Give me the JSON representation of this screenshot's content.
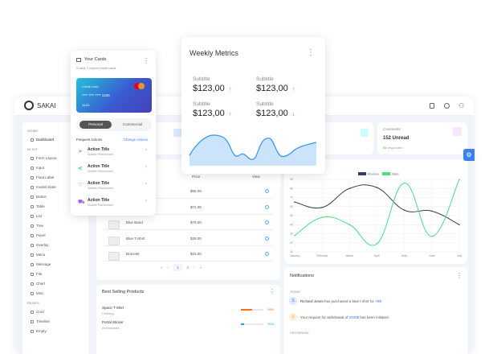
{
  "app": {
    "logo": "SAKAI",
    "top_icons": [
      "calendar-icon",
      "gear-icon",
      "user-icon"
    ]
  },
  "sidebar": {
    "sections": [
      {
        "title": "HOME",
        "items": [
          "Dashboard"
        ]
      },
      {
        "title": "UI KIT",
        "items": [
          "Form Layout",
          "Input",
          "Float Label",
          "Invalid State",
          "Button",
          "Table",
          "List",
          "Tree",
          "Panel",
          "Overlay",
          "Menu",
          "Message",
          "File",
          "Chart",
          "Misc"
        ]
      },
      {
        "title": "PAGES",
        "items": [
          "Crud",
          "Timeline",
          "Empty"
        ]
      }
    ]
  },
  "stats": {
    "comments": {
      "title": "Comments",
      "value": "152 Unread",
      "highlight": "85",
      "sub": "responded"
    }
  },
  "products": {
    "headers": {
      "price": "Price",
      "view": "View"
    },
    "rows": [
      {
        "name": "",
        "price": "$65.00"
      },
      {
        "name": "",
        "price": "$72.00"
      },
      {
        "name": "Blue Band",
        "price": "$79.00"
      },
      {
        "name": "Blue T-Shirt",
        "price": "$29.00"
      },
      {
        "name": "Bracelet",
        "price": "$15.00"
      }
    ],
    "pagination": {
      "pages": [
        "1",
        "2"
      ],
      "current": "1"
    }
  },
  "best_selling": {
    "title": "Best Selling Products",
    "items": [
      {
        "name": "Space T-Shirt",
        "category": "Clothing",
        "percent": 50,
        "label": "%50",
        "color": "#f97316"
      },
      {
        "name": "Portal Sticker",
        "category": "Accessories",
        "percent": 16,
        "label": "%16",
        "color": "#06b6d4"
      }
    ]
  },
  "notifications": {
    "title": "Notifications",
    "today": "TODAY",
    "yesterday": "YESTERDAY",
    "items": [
      {
        "avatar": "S",
        "name": "Richard Jones",
        "text": " has purchased a blue t-shirt for ",
        "amount": "79$"
      },
      {
        "avatar": "⇩",
        "name": "",
        "text": "Your request for withdrawal of ",
        "amount": "2500$",
        "tail": " has been initiated."
      }
    ]
  },
  "cards_popup": {
    "title": "Your Cards",
    "subtitle": "5 valid, 1 expired credit cards",
    "card": {
      "label": "Credit Card",
      "number": "**** **** **** 1234",
      "expiry": "11/21",
      "brand": "mastercard"
    },
    "tabs": [
      "Personal",
      "Commercial"
    ],
    "active_tab": "Personal",
    "frequent": "Frequent Actions",
    "change": "Change Actions",
    "actions": [
      {
        "title": "Action Title",
        "subtitle": "Subtitle Placeholder",
        "icon": "send-icon",
        "color": "#6366f1"
      },
      {
        "title": "Action Title",
        "subtitle": "Subtitle Placeholder",
        "icon": "share-icon",
        "color": "#14b8a6"
      },
      {
        "title": "Action Title",
        "subtitle": "Subtitle Placeholder",
        "icon": "shield-icon",
        "color": "#f97316"
      },
      {
        "title": "Action Title",
        "subtitle": "Subtitle Placeholder",
        "icon": "cart-icon",
        "color": "#a855f7"
      }
    ]
  },
  "weekly": {
    "title": "Weekly Metrics",
    "metrics": [
      {
        "label": "Subtitle",
        "value": "$123,00",
        "trend": "up"
      },
      {
        "label": "Subtitle",
        "value": "$123,00",
        "trend": "up"
      },
      {
        "label": "Subtitle",
        "value": "$123,00",
        "trend": "up"
      },
      {
        "label": "Subtitle",
        "value": "$123,00",
        "trend": "down"
      }
    ],
    "arrows": {
      "up": "↑",
      "down": "↓"
    }
  },
  "chart_data": {
    "type": "line",
    "categories": [
      "January",
      "February",
      "March",
      "April",
      "May",
      "June",
      "July"
    ],
    "series": [
      {
        "name": "Revenue",
        "values": [
          65,
          59,
          80,
          81,
          56,
          55,
          40
        ],
        "color": "#334155"
      },
      {
        "name": "Sales",
        "values": [
          28,
          48,
          40,
          19,
          86,
          27,
          90
        ],
        "color": "#4ade80"
      }
    ],
    "ylim": [
      10,
      90
    ],
    "yticks": [
      10,
      20,
      30,
      40,
      50,
      60,
      70,
      80,
      90
    ],
    "grid": true,
    "legend": "top"
  },
  "colors": {
    "accent": "#3b82f6",
    "up": "#22c55e",
    "down": "#ef4444"
  }
}
